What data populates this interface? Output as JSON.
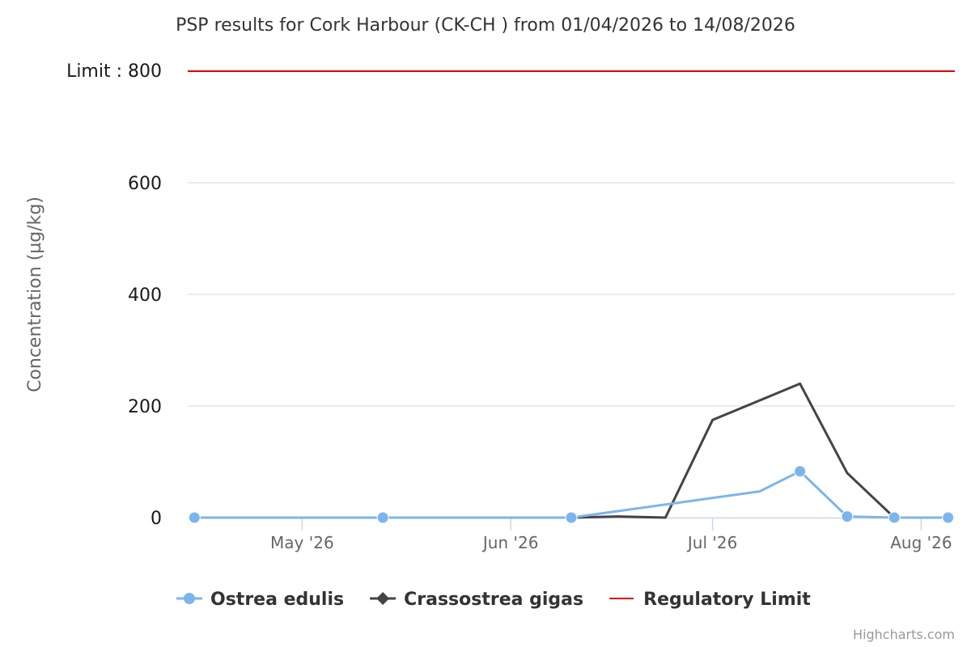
{
  "chart_data": {
    "type": "line",
    "title": "PSP results for Cork Harbour (CK-CH ) from 01/04/2026 to 14/08/2026",
    "ylabel": "Concentration (µg/kg)",
    "xlabel": "",
    "ylim": [
      0,
      800
    ],
    "yticks": [
      0,
      200,
      400,
      600
    ],
    "xlim": [
      "2026-04-14",
      "2026-08-06"
    ],
    "xticks": [
      {
        "date": "2026-05-01",
        "label": "May '26"
      },
      {
        "date": "2026-06-01",
        "label": "Jun '26"
      },
      {
        "date": "2026-07-01",
        "label": "Jul '26"
      },
      {
        "date": "2026-08-01",
        "label": "Aug '26"
      }
    ],
    "grid": true,
    "legend_position": "bottom",
    "limit": {
      "name": "Regulatory Limit",
      "label": "Limit : 800",
      "value": 800,
      "color": "#e00000"
    },
    "series": [
      {
        "name": "Ostrea edulis",
        "color": "#7cb5ec",
        "marker": "circle",
        "points": [
          {
            "x": "2026-04-15",
            "y": 0
          },
          {
            "x": "2026-05-13",
            "y": 0
          },
          {
            "x": "2026-06-10",
            "y": 0
          },
          {
            "x": "2026-07-08",
            "y": 47
          },
          {
            "x": "2026-07-14",
            "y": 83
          },
          {
            "x": "2026-07-21",
            "y": 2
          },
          {
            "x": "2026-07-28",
            "y": 0
          },
          {
            "x": "2026-08-05",
            "y": 0
          }
        ]
      },
      {
        "name": "Crassostrea gigas",
        "color": "#434348",
        "marker": "diamond",
        "points": [
          {
            "x": "2026-05-13",
            "y": 0
          },
          {
            "x": "2026-06-10",
            "y": 0
          },
          {
            "x": "2026-06-17",
            "y": 2
          },
          {
            "x": "2026-06-24",
            "y": 0
          },
          {
            "x": "2026-07-01",
            "y": 175
          },
          {
            "x": "2026-07-14",
            "y": 240
          },
          {
            "x": "2026-07-21",
            "y": 80
          },
          {
            "x": "2026-07-28",
            "y": 0
          },
          {
            "x": "2026-08-05",
            "y": 0
          }
        ]
      }
    ]
  },
  "credits": "Highcharts.com"
}
